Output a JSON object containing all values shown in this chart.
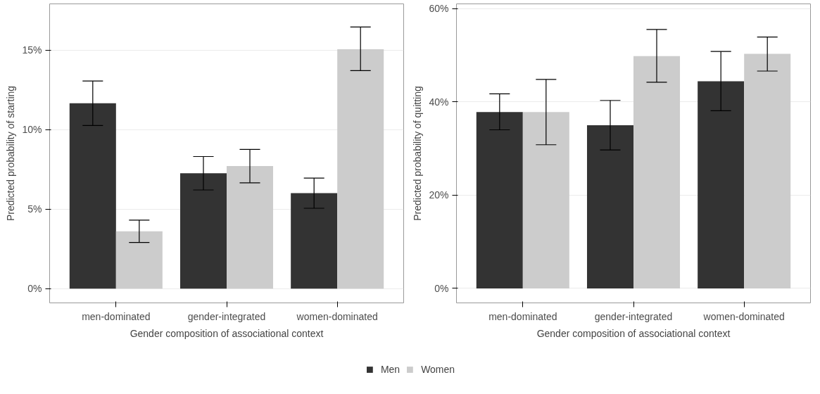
{
  "chart_data": [
    {
      "type": "bar",
      "categories": [
        "men-dominated",
        "gender-integrated",
        "women-dominated"
      ],
      "xlabel": "Gender composition of associational context",
      "ylabel": "Predicted probability of starting",
      "ylim": [
        -0.9,
        17.9
      ],
      "yticks": [
        {
          "value": 0,
          "label": "0%"
        },
        {
          "value": 5,
          "label": "5%"
        },
        {
          "value": 10,
          "label": "10%"
        },
        {
          "value": 15,
          "label": "15%"
        }
      ],
      "grid": "y",
      "legend": "bottom",
      "series": [
        {
          "name": "Men",
          "color": "#333333",
          "values": [
            11.65,
            7.25,
            6.0
          ],
          "errors": [
            [
              10.25,
              13.05
            ],
            [
              6.2,
              8.3
            ],
            [
              5.05,
              6.95
            ]
          ]
        },
        {
          "name": "Women",
          "color": "#cccccc",
          "values": [
            3.6,
            7.7,
            15.05
          ],
          "errors": [
            [
              2.9,
              4.3
            ],
            [
              6.65,
              8.75
            ],
            [
              13.7,
              16.45
            ]
          ]
        }
      ]
    },
    {
      "type": "bar",
      "categories": [
        "men-dominated",
        "gender-integrated",
        "women-dominated"
      ],
      "xlabel": "Gender composition of associational context",
      "ylabel": "Predicted probability of quitting",
      "ylim": [
        -3.1,
        61
      ],
      "yticks": [
        {
          "value": 0,
          "label": "0%"
        },
        {
          "value": 20,
          "label": "20%"
        },
        {
          "value": 40,
          "label": "40%"
        },
        {
          "value": 60,
          "label": "60%"
        }
      ],
      "grid": "y",
      "legend": "bottom",
      "series": [
        {
          "name": "Men",
          "color": "#333333",
          "values": [
            37.8,
            35.0,
            44.4
          ],
          "errors": [
            [
              34.0,
              41.7
            ],
            [
              29.7,
              40.3
            ],
            [
              38.1,
              50.8
            ]
          ]
        },
        {
          "name": "Women",
          "color": "#cccccc",
          "values": [
            37.8,
            49.8,
            50.3
          ],
          "errors": [
            [
              30.8,
              44.8
            ],
            [
              44.2,
              55.5
            ],
            [
              46.6,
              53.9
            ]
          ]
        }
      ]
    }
  ]
}
